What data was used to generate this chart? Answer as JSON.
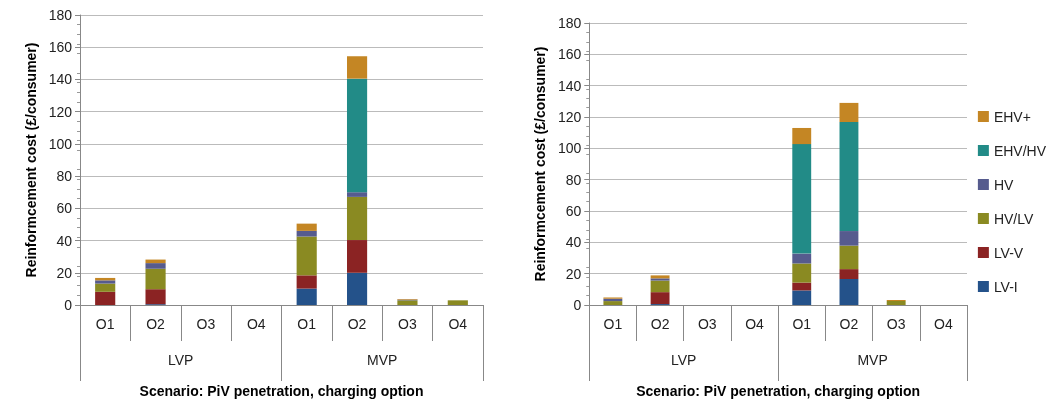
{
  "chart_data": [
    {
      "type": "bar",
      "stacked": true,
      "ylabel": "Reinformcement cost (£/consumer)",
      "xlabel": "Scenario: PiV penetration, charging option",
      "categories": [
        "O1",
        "O2",
        "O3",
        "O4",
        "O1",
        "O2",
        "O3",
        "O4"
      ],
      "annotations": [
        "LVP",
        "MVP"
      ],
      "ylim": [
        0,
        180
      ],
      "yticks": [
        0,
        20,
        40,
        60,
        80,
        100,
        120,
        140,
        160,
        180
      ],
      "grid": "y",
      "legend": false,
      "series": [
        {
          "color": "#24528a",
          "values": [
            0,
            0.5,
            0,
            0,
            10.2,
            20,
            0,
            0
          ]
        },
        {
          "color": "#8b2323",
          "values": [
            8.2,
            9.3,
            0,
            0,
            8.2,
            20.3,
            0,
            0
          ]
        },
        {
          "color": "#8a8a22",
          "values": [
            5.1,
            12.7,
            0,
            0,
            24.1,
            26.8,
            2.9,
            2.9
          ]
        },
        {
          "color": "#565b8e",
          "values": [
            2,
            3.5,
            0,
            0,
            3.5,
            2.9,
            0.4,
            0
          ]
        },
        {
          "color": "#228b87",
          "values": [
            0,
            0,
            0,
            0,
            0,
            70.5,
            0,
            0
          ]
        },
        {
          "color": "#c48624",
          "values": [
            1.5,
            2.2,
            0,
            0,
            4.5,
            13.9,
            0.4,
            null
          ]
        }
      ]
    },
    {
      "type": "bar",
      "stacked": true,
      "ylabel": "Reinformcement cost (£/consumer)",
      "xlabel": "Scenario: PiV penetration, charging option",
      "categories": [
        "O1",
        "O2",
        "O3",
        "O4",
        "O1",
        "O2",
        "O3",
        "O4"
      ],
      "annotations": [
        "LVP",
        "MVP"
      ],
      "ylim": [
        0,
        180
      ],
      "yticks": [
        0,
        20,
        40,
        60,
        80,
        100,
        120,
        140,
        160,
        180
      ],
      "grid": "y",
      "legend": "right",
      "series": [
        {
          "name": "LV-I",
          "color": "#24528a",
          "values": [
            0,
            0.6,
            0,
            0,
            9.3,
            16.6,
            0,
            0
          ]
        },
        {
          "name": "LV-V",
          "color": "#8b2323",
          "values": [
            0,
            7.6,
            0,
            0,
            5,
            6.3,
            0,
            0
          ]
        },
        {
          "name": "HV/LV",
          "color": "#8a8a22",
          "values": [
            2.5,
            7.4,
            0,
            0,
            12.2,
            15,
            2.5,
            0
          ]
        },
        {
          "name": "HV",
          "color": "#565b8e",
          "values": [
            1.5,
            1.4,
            0,
            0,
            6.3,
            9.3,
            0,
            0
          ]
        },
        {
          "name": "EHV/HV",
          "color": "#228b87",
          "values": [
            0,
            0,
            0,
            0,
            69.9,
            69.6,
            0,
            0
          ]
        },
        {
          "name": "EHV+",
          "color": "#c48624",
          "values": [
            0.8,
            1.9,
            0,
            0,
            10.3,
            12.2,
            0.7,
            0
          ]
        }
      ]
    }
  ]
}
